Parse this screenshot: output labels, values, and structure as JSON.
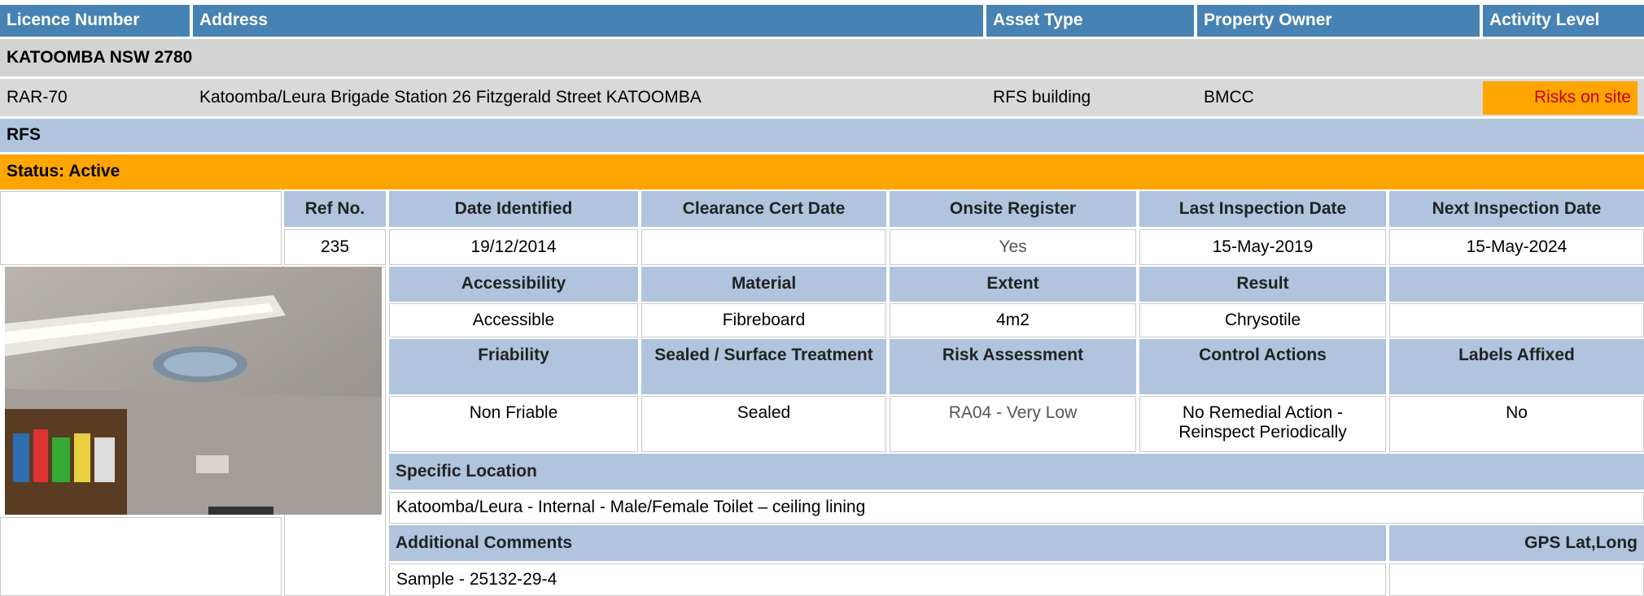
{
  "header": {
    "columns": [
      "Licence Number",
      "Address",
      "Asset Type",
      "Property Owner",
      "Activity Level"
    ]
  },
  "location": "KATOOMBA  NSW  2780",
  "licence": {
    "number": "RAR-70",
    "address": "Katoomba/Leura Brigade Station 26 Fitzgerald Street KATOOMBA",
    "asset_type": "RFS building",
    "property_owner": "BMCC",
    "activity_level": "Risks on site"
  },
  "group": "RFS",
  "status": "Status: Active",
  "details": {
    "row1": [
      {
        "label": "Ref No.",
        "value": "235"
      },
      {
        "label": "Date Identified",
        "value": "19/12/2014"
      },
      {
        "label": "Clearance Cert Date"
      },
      {
        "label": "Onsite Register",
        "value": "Yes"
      },
      {
        "label": "Last Inspection Date",
        "value": "15-May-2019"
      },
      {
        "label": "Next Inspection Date",
        "value": "15-May-2024"
      }
    ],
    "row2": [
      {
        "label": "Accessibility",
        "value": "Accessible"
      },
      {
        "label": "Material",
        "value": "Fibreboard"
      },
      {
        "label": "Extent",
        "value": "4m2"
      },
      {
        "label": "Result",
        "value": "Chrysotile"
      }
    ],
    "row3": [
      {
        "label": "Friability",
        "value": "Non Friable"
      },
      {
        "label": "Sealed / Surface Treatment",
        "value": "Sealed"
      },
      {
        "label": "Risk Assessment",
        "value": "RA04 - Very Low"
      },
      {
        "label": "Control Actions",
        "value": "No Remedial Action - Reinspect Periodically"
      },
      {
        "label": "Labels Affixed",
        "value": "No"
      }
    ],
    "specific_location": {
      "label": "Specific Location",
      "value": "Katoomba/Leura - Internal - Male/Female Toilet – ceiling lining"
    },
    "additional_comments": {
      "label": "Additional Comments",
      "value": "Sample - 25132-29-4"
    },
    "gps": {
      "label": "GPS Lat,Long"
    }
  }
}
